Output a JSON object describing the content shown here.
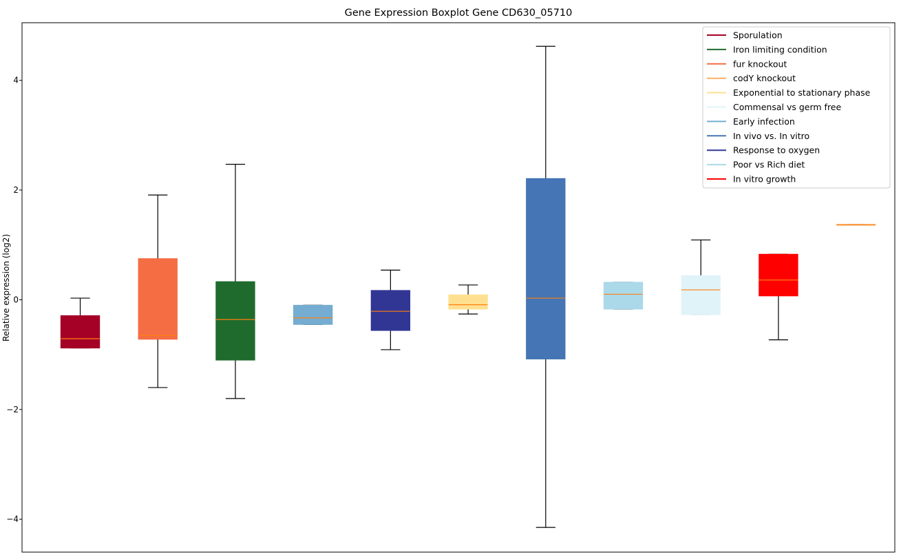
{
  "chart_data": {
    "type": "boxplot",
    "title": "Gene Expression Boxplot Gene CD630_05710",
    "xlabel": "",
    "ylabel": "Relative expression (log2)",
    "ylim": [
      -4.6,
      5.05
    ],
    "xlim": [
      0.25,
      11.5
    ],
    "yticks": [
      -4,
      -2,
      0,
      2,
      4
    ],
    "ytick_labels": [
      "−4",
      "−2",
      "0",
      "2",
      "4"
    ],
    "grid": false,
    "legend_position": "top-right",
    "median_color": "#ff7f0e",
    "boxes": [
      {
        "name": "Sporulation",
        "color": "#a50026",
        "whislo": -0.88,
        "q1": -0.88,
        "med": -0.71,
        "q3": -0.29,
        "whishi": 0.03
      },
      {
        "name": "fur knockout",
        "color": "#f46d43",
        "whislo": -1.6,
        "q1": -0.72,
        "med": -0.65,
        "q3": 0.75,
        "whishi": 1.91
      },
      {
        "name": "Iron limiting condition",
        "color": "#1f6b2e",
        "whislo": -1.8,
        "q1": -1.1,
        "med": -0.36,
        "q3": 0.33,
        "whishi": 2.47
      },
      {
        "name": "Early infection",
        "color": "#74add1",
        "whislo": -0.45,
        "q1": -0.45,
        "med": -0.33,
        "q3": -0.1,
        "whishi": -0.1
      },
      {
        "name": "Response to oxygen",
        "color": "#313695",
        "whislo": -0.91,
        "q1": -0.56,
        "med": -0.21,
        "q3": 0.17,
        "whishi": 0.54
      },
      {
        "name": "Exponential to stationary phase",
        "color": "#fee090",
        "whislo": -0.26,
        "q1": -0.17,
        "med": -0.09,
        "q3": 0.09,
        "whishi": 0.27
      },
      {
        "name": "In vivo vs. In vitro",
        "color": "#4575b4",
        "whislo": -4.15,
        "q1": -1.08,
        "med": 0.03,
        "q3": 2.21,
        "whishi": 4.62
      },
      {
        "name": "Poor vs Rich diet",
        "color": "#abd9e9",
        "whislo": -0.17,
        "q1": -0.17,
        "med": 0.1,
        "q3": 0.32,
        "whishi": 0.32
      },
      {
        "name": "Commensal vs germ free",
        "color": "#e0f3f8",
        "whislo": -0.27,
        "q1": -0.27,
        "med": 0.18,
        "q3": 0.44,
        "whishi": 1.09
      },
      {
        "name": "In vitro growth",
        "color": "#ff0000",
        "whislo": -0.73,
        "q1": 0.07,
        "med": 0.36,
        "q3": 0.83,
        "whishi": 0.83
      },
      {
        "name": "codY knockout",
        "color": "#fdae61",
        "whislo": 1.37,
        "q1": 1.37,
        "med": 1.37,
        "q3": 1.37,
        "whishi": 1.37
      }
    ],
    "legend": [
      {
        "label": "Sporulation",
        "color": "#a50026"
      },
      {
        "label": "Iron limiting condition",
        "color": "#1f6b2e"
      },
      {
        "label": "fur knockout",
        "color": "#f46d43"
      },
      {
        "label": "codY knockout",
        "color": "#fdae61"
      },
      {
        "label": "Exponential to stationary phase",
        "color": "#fee090"
      },
      {
        "label": "Commensal vs germ free",
        "color": "#e0f3f8"
      },
      {
        "label": "Early infection",
        "color": "#74add1"
      },
      {
        "label": "In vivo vs. In vitro",
        "color": "#4575b4"
      },
      {
        "label": "Response to oxygen",
        "color": "#313695"
      },
      {
        "label": "Poor vs Rich diet",
        "color": "#abd9e9"
      },
      {
        "label": "In vitro growth",
        "color": "#ff0000"
      }
    ]
  }
}
